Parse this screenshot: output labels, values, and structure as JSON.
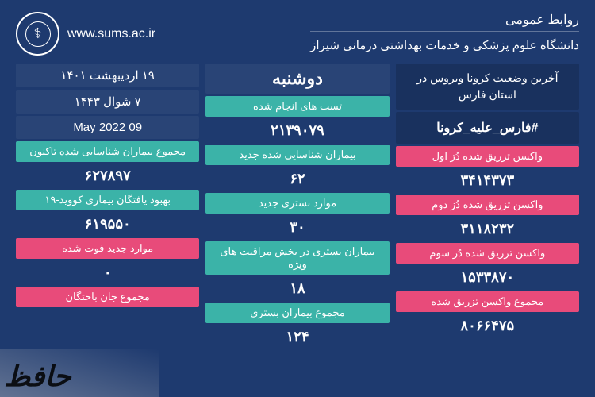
{
  "header": {
    "pr_label": "روابط عمومی",
    "university": "دانشگاه علوم پزشکی و خدمات بهداشتی درمانی شیراز",
    "url": "www.sums.ac.ir"
  },
  "col_right": {
    "status_title": "آخرین وضعیت کرونا ویروس در استان فارس",
    "hashtag": "#فارس_علیه_کرونا",
    "dose1_label": "واکسن تزریق شده دُز اول",
    "dose1_value": "۳۴۱۴۳۷۳",
    "dose2_label": "واکسن تزریق شده دُز دوم",
    "dose2_value": "۳۱۱۸۲۳۲",
    "dose3_label": "واکسن تزریق شده دُز سوم",
    "dose3_value": "۱۵۳۳۸۷۰",
    "total_vac_label": "مجموع واکسن تزریق شده",
    "total_vac_value": "۸۰۶۶۴۷۵"
  },
  "col_mid": {
    "day": "دوشنبه",
    "tests_label": "تست های انجام شده",
    "tests_value": "۲۱۳۹۰۷۹",
    "new_cases_label": "بیماران شناسایی شده جدید",
    "new_cases_value": "۶۲",
    "new_hosp_label": "موارد بستری جدید",
    "new_hosp_value": "۳۰",
    "icu_label": "بیماران بستری در بخش مراقبت های ویژه",
    "icu_value": "۱۸",
    "total_hosp_label": "مجموع بیماران بستری",
    "total_hosp_value": "۱۲۴"
  },
  "col_left": {
    "date_fa": "۱۹ اردیبهشت ۱۴۰۱",
    "date_ar": "۷ شوال ۱۴۴۳",
    "date_en": "09 May 2022",
    "total_cases_label": "مجموع بیماران شناسایی شده تاکنون",
    "total_cases_value": "۶۲۷۸۹۷",
    "recovered_label": "بهبود یافتگان بیماری کووید-۱۹",
    "recovered_value": "۶۱۹۵۵۰",
    "new_deaths_label": "موارد جدید فوت شده",
    "new_deaths_value": "۰",
    "total_deaths_label": "مجموع جان باختگان",
    "total_deaths_value": ""
  },
  "watermark": "حافظ",
  "colors": {
    "bg": "#1e3a6f",
    "teal": "#3bb3a8",
    "pink": "#e84b7a"
  }
}
